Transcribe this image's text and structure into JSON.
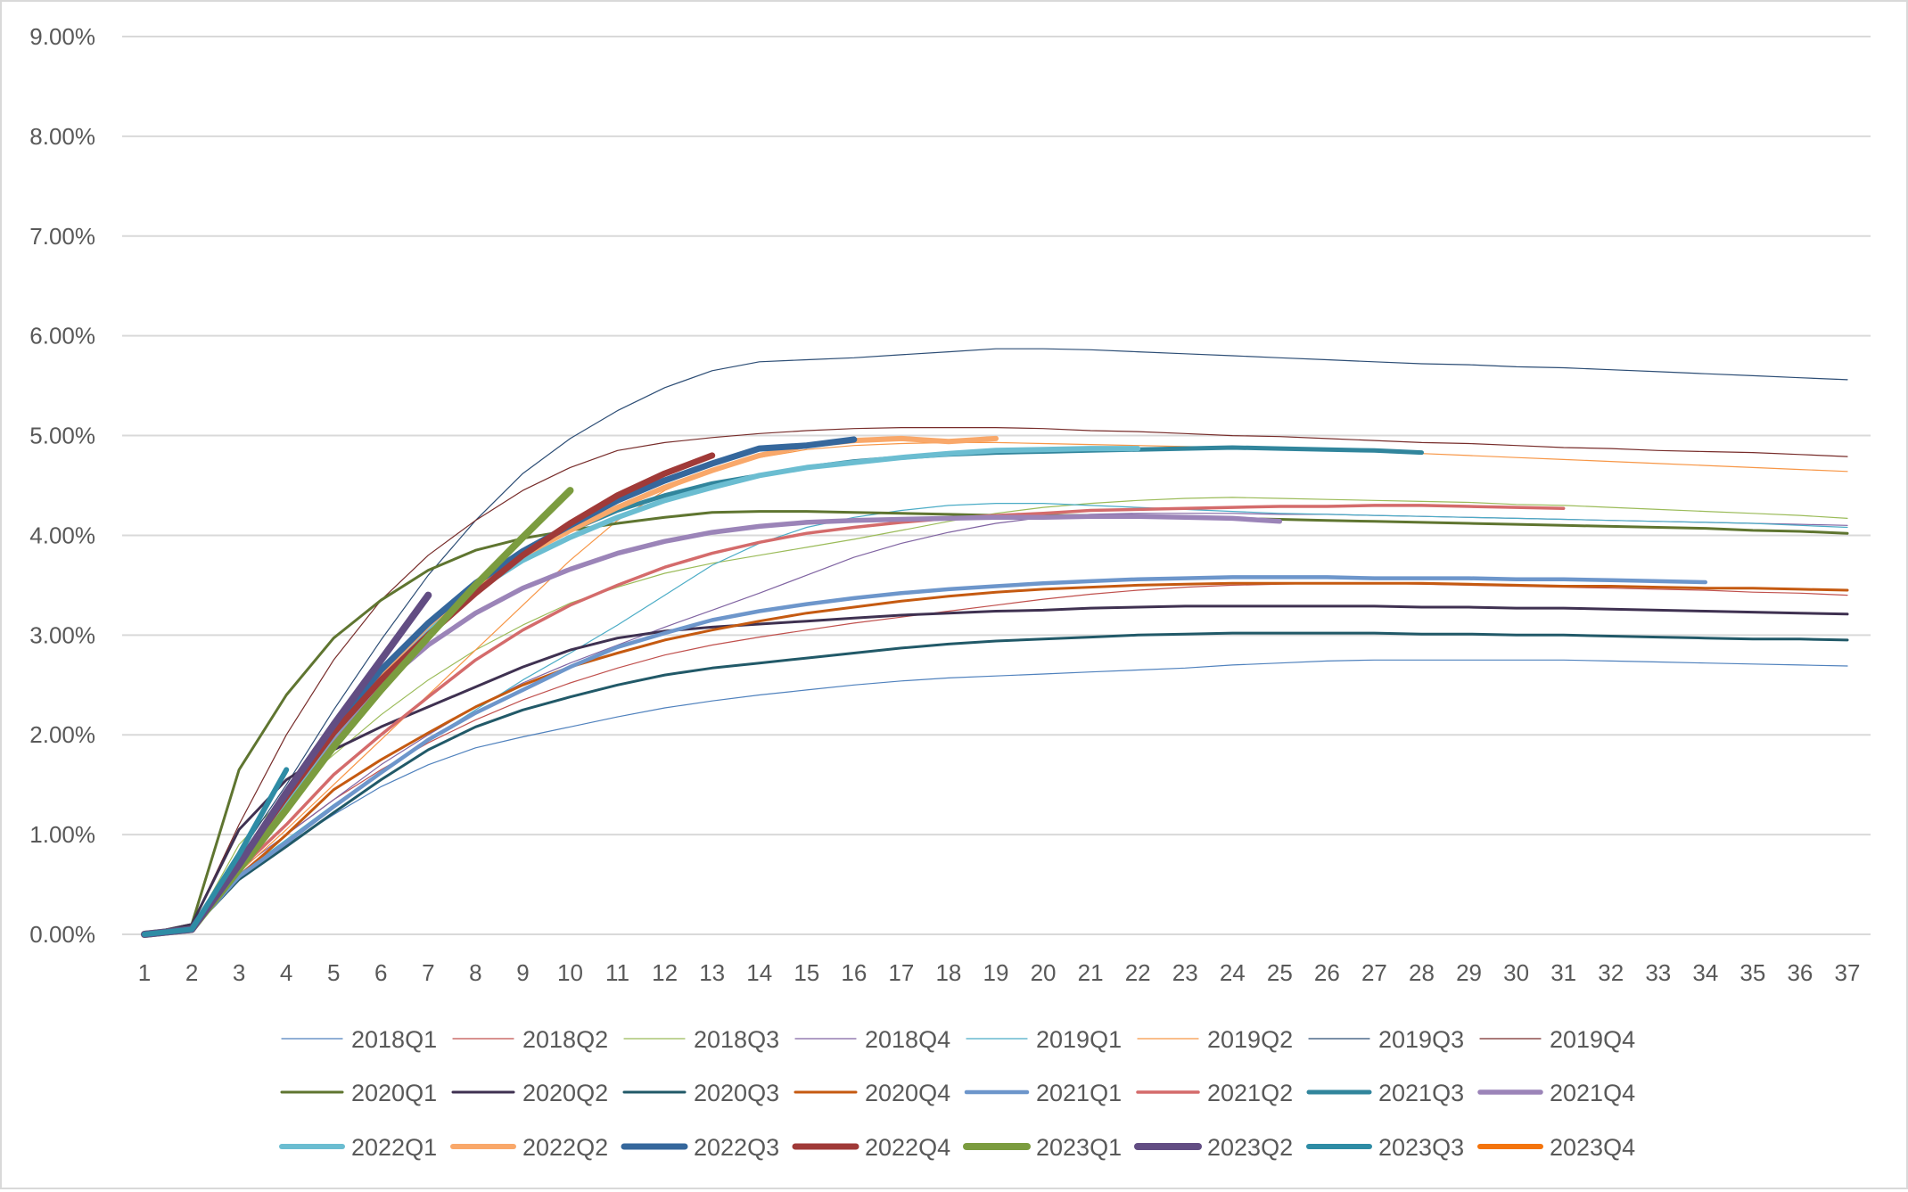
{
  "chart_data": {
    "type": "line",
    "title": "",
    "xlabel": "",
    "ylabel": "",
    "ylim": [
      0,
      9
    ],
    "yticks": [
      "0.00%",
      "1.00%",
      "2.00%",
      "3.00%",
      "4.00%",
      "5.00%",
      "6.00%",
      "7.00%",
      "8.00%",
      "9.00%"
    ],
    "x": [
      1,
      2,
      3,
      4,
      5,
      6,
      7,
      8,
      9,
      10,
      11,
      12,
      13,
      14,
      15,
      16,
      17,
      18,
      19,
      20,
      21,
      22,
      23,
      24,
      25,
      26,
      27,
      28,
      29,
      30,
      31,
      32,
      33,
      34,
      35,
      36,
      37
    ],
    "grid": "horizontal",
    "legend_position": "bottom",
    "series": [
      {
        "name": "2018Q1",
        "color": "#4f81bd",
        "width": 1.2,
        "values": [
          0,
          0.08,
          0.55,
          0.9,
          1.2,
          1.48,
          1.7,
          1.87,
          1.98,
          2.08,
          2.18,
          2.27,
          2.34,
          2.4,
          2.45,
          2.5,
          2.54,
          2.57,
          2.59,
          2.61,
          2.63,
          2.65,
          2.67,
          2.7,
          2.72,
          2.74,
          2.75,
          2.75,
          2.75,
          2.75,
          2.75,
          2.74,
          2.73,
          2.72,
          2.71,
          2.7,
          2.69
        ]
      },
      {
        "name": "2018Q2",
        "color": "#c0504d",
        "width": 1.2,
        "values": [
          0,
          0.08,
          0.6,
          1.0,
          1.35,
          1.65,
          1.92,
          2.15,
          2.35,
          2.52,
          2.67,
          2.8,
          2.9,
          2.98,
          3.05,
          3.12,
          3.18,
          3.24,
          3.3,
          3.36,
          3.41,
          3.45,
          3.48,
          3.5,
          3.51,
          3.52,
          3.52,
          3.51,
          3.5,
          3.49,
          3.48,
          3.47,
          3.46,
          3.45,
          3.43,
          3.42,
          3.4
        ]
      },
      {
        "name": "2018Q3",
        "color": "#9bbb59",
        "width": 1.2,
        "values": [
          0,
          0.05,
          0.9,
          1.4,
          1.8,
          2.2,
          2.55,
          2.85,
          3.1,
          3.32,
          3.48,
          3.62,
          3.72,
          3.8,
          3.88,
          3.96,
          4.05,
          4.14,
          4.22,
          4.28,
          4.32,
          4.35,
          4.37,
          4.38,
          4.37,
          4.36,
          4.35,
          4.34,
          4.33,
          4.31,
          4.3,
          4.28,
          4.26,
          4.24,
          4.22,
          4.2,
          4.17
        ]
      },
      {
        "name": "2018Q4",
        "color": "#8064a2",
        "width": 1.2,
        "values": [
          0,
          0.06,
          0.65,
          1.0,
          1.35,
          1.7,
          2.0,
          2.28,
          2.52,
          2.72,
          2.9,
          3.08,
          3.25,
          3.42,
          3.6,
          3.78,
          3.92,
          4.03,
          4.12,
          4.18,
          4.21,
          4.22,
          4.22,
          4.22,
          4.21,
          4.21,
          4.2,
          4.19,
          4.18,
          4.17,
          4.16,
          4.15,
          4.14,
          4.13,
          4.12,
          4.11,
          4.1
        ]
      },
      {
        "name": "2019Q1",
        "color": "#4bacc6",
        "width": 1.2,
        "values": [
          0,
          0.06,
          0.6,
          0.95,
          1.3,
          1.62,
          1.95,
          2.25,
          2.55,
          2.82,
          3.1,
          3.4,
          3.7,
          3.92,
          4.08,
          4.18,
          4.25,
          4.3,
          4.32,
          4.32,
          4.3,
          4.28,
          4.26,
          4.24,
          4.22,
          4.21,
          4.2,
          4.19,
          4.18,
          4.17,
          4.16,
          4.15,
          4.14,
          4.13,
          4.12,
          4.1,
          4.08
        ]
      },
      {
        "name": "2019Q2",
        "color": "#f79646",
        "width": 1.2,
        "values": [
          0,
          0.06,
          0.62,
          1.05,
          1.5,
          1.95,
          2.4,
          2.85,
          3.3,
          3.75,
          4.15,
          4.45,
          4.65,
          4.78,
          4.86,
          4.9,
          4.92,
          4.93,
          4.93,
          4.92,
          4.91,
          4.9,
          4.89,
          4.88,
          4.87,
          4.86,
          4.84,
          4.82,
          4.8,
          4.78,
          4.76,
          4.74,
          4.72,
          4.7,
          4.68,
          4.66,
          4.64
        ]
      },
      {
        "name": "2019Q3",
        "color": "#2c4d75",
        "width": 1.2,
        "values": [
          0,
          0.08,
          0.8,
          1.5,
          2.25,
          2.95,
          3.6,
          4.15,
          4.62,
          4.97,
          5.25,
          5.48,
          5.65,
          5.74,
          5.76,
          5.78,
          5.81,
          5.84,
          5.87,
          5.87,
          5.86,
          5.84,
          5.82,
          5.8,
          5.78,
          5.76,
          5.74,
          5.72,
          5.71,
          5.69,
          5.68,
          5.66,
          5.64,
          5.62,
          5.6,
          5.58,
          5.56
        ]
      },
      {
        "name": "2019Q4",
        "color": "#772c2a",
        "width": 1.2,
        "values": [
          0,
          0.1,
          1.1,
          2.0,
          2.75,
          3.35,
          3.8,
          4.15,
          4.45,
          4.68,
          4.85,
          4.93,
          4.98,
          5.02,
          5.05,
          5.07,
          5.08,
          5.08,
          5.08,
          5.07,
          5.05,
          5.04,
          5.02,
          5.0,
          4.99,
          4.97,
          4.95,
          4.93,
          4.92,
          4.9,
          4.88,
          4.87,
          4.85,
          4.84,
          4.83,
          4.81,
          4.79
        ]
      },
      {
        "name": "2020Q1",
        "color": "#5f7530",
        "width": 3,
        "values": [
          0,
          0.1,
          1.65,
          2.4,
          2.97,
          3.35,
          3.65,
          3.85,
          3.97,
          4.05,
          4.12,
          4.18,
          4.23,
          4.24,
          4.24,
          4.23,
          4.22,
          4.21,
          4.2,
          4.2,
          4.2,
          4.19,
          4.18,
          4.17,
          4.16,
          4.15,
          4.14,
          4.13,
          4.12,
          4.11,
          4.1,
          4.09,
          4.08,
          4.07,
          4.05,
          4.04,
          4.02
        ]
      },
      {
        "name": "2020Q2",
        "color": "#3f3151",
        "width": 3,
        "values": [
          0,
          0.1,
          1.05,
          1.55,
          1.85,
          2.08,
          2.28,
          2.48,
          2.68,
          2.85,
          2.97,
          3.04,
          3.08,
          3.11,
          3.14,
          3.17,
          3.2,
          3.22,
          3.24,
          3.25,
          3.27,
          3.28,
          3.29,
          3.29,
          3.29,
          3.29,
          3.29,
          3.28,
          3.28,
          3.27,
          3.27,
          3.26,
          3.25,
          3.24,
          3.23,
          3.22,
          3.21
        ]
      },
      {
        "name": "2020Q3",
        "color": "#215968",
        "width": 3,
        "values": [
          0,
          0.05,
          0.55,
          0.88,
          1.22,
          1.55,
          1.85,
          2.08,
          2.25,
          2.38,
          2.5,
          2.6,
          2.67,
          2.72,
          2.77,
          2.82,
          2.87,
          2.91,
          2.94,
          2.96,
          2.98,
          3.0,
          3.01,
          3.02,
          3.02,
          3.02,
          3.02,
          3.01,
          3.01,
          3.0,
          3.0,
          2.99,
          2.98,
          2.97,
          2.96,
          2.96,
          2.95
        ]
      },
      {
        "name": "2020Q4",
        "color": "#c55a11",
        "width": 3,
        "values": [
          0,
          0.05,
          0.58,
          1.0,
          1.45,
          1.75,
          2.02,
          2.28,
          2.5,
          2.68,
          2.82,
          2.95,
          3.05,
          3.14,
          3.22,
          3.28,
          3.34,
          3.39,
          3.43,
          3.46,
          3.48,
          3.5,
          3.51,
          3.52,
          3.52,
          3.52,
          3.52,
          3.52,
          3.51,
          3.5,
          3.49,
          3.49,
          3.48,
          3.47,
          3.47,
          3.46,
          3.45
        ]
      },
      {
        "name": "2021Q1",
        "color": "#6d96cb",
        "width": 4.5,
        "values": [
          0,
          0.05,
          0.58,
          0.92,
          1.28,
          1.62,
          1.95,
          2.22,
          2.45,
          2.68,
          2.88,
          3.02,
          3.15,
          3.24,
          3.31,
          3.37,
          3.42,
          3.46,
          3.49,
          3.52,
          3.54,
          3.56,
          3.57,
          3.58,
          3.58,
          3.58,
          3.57,
          3.57,
          3.57,
          3.56,
          3.56,
          3.55,
          3.54,
          3.53
        ]
      },
      {
        "name": "2021Q2",
        "color": "#d46b6b",
        "width": 3.5,
        "values": [
          0,
          0.05,
          0.65,
          1.1,
          1.6,
          2.0,
          2.38,
          2.75,
          3.05,
          3.3,
          3.5,
          3.68,
          3.82,
          3.93,
          4.02,
          4.08,
          4.13,
          4.17,
          4.2,
          4.22,
          4.25,
          4.26,
          4.27,
          4.28,
          4.29,
          4.29,
          4.3,
          4.3,
          4.29,
          4.28,
          4.27
        ]
      },
      {
        "name": "2021Q3",
        "color": "#31859c",
        "width": 5,
        "values": [
          0,
          0.05,
          0.7,
          1.4,
          2.05,
          2.6,
          3.05,
          3.45,
          3.8,
          4.05,
          4.25,
          4.4,
          4.52,
          4.6,
          4.68,
          4.74,
          4.78,
          4.81,
          4.83,
          4.84,
          4.85,
          4.86,
          4.87,
          4.88,
          4.87,
          4.86,
          4.85,
          4.83
        ]
      },
      {
        "name": "2021Q4",
        "color": "#9b84b8",
        "width": 5.5,
        "values": [
          0,
          0.05,
          0.7,
          1.3,
          1.95,
          2.5,
          2.9,
          3.22,
          3.47,
          3.66,
          3.82,
          3.94,
          4.03,
          4.09,
          4.13,
          4.15,
          4.16,
          4.17,
          4.18,
          4.18,
          4.19,
          4.19,
          4.18,
          4.17,
          4.14
        ]
      },
      {
        "name": "2022Q1",
        "color": "#6bbdd1",
        "width": 6,
        "values": [
          0,
          0.05,
          0.7,
          1.35,
          2.0,
          2.55,
          3.05,
          3.45,
          3.75,
          3.98,
          4.18,
          4.35,
          4.48,
          4.6,
          4.68,
          4.73,
          4.78,
          4.82,
          4.85,
          4.86,
          4.87,
          4.87
        ]
      },
      {
        "name": "2022Q2",
        "color": "#f9a86a",
        "width": 6,
        "values": [
          0,
          0.05,
          0.72,
          1.38,
          2.05,
          2.62,
          3.1,
          3.5,
          3.8,
          4.05,
          4.28,
          4.48,
          4.65,
          4.8,
          4.9,
          4.95,
          4.97,
          4.94,
          4.97
        ]
      },
      {
        "name": "2022Q3",
        "color": "#35679c",
        "width": 7,
        "values": [
          0,
          0.05,
          0.72,
          1.4,
          2.08,
          2.65,
          3.12,
          3.52,
          3.84,
          4.1,
          4.35,
          4.55,
          4.72,
          4.87,
          4.9,
          4.96
        ]
      },
      {
        "name": "2022Q4",
        "color": "#a03a38",
        "width": 7,
        "values": [
          0,
          0.05,
          0.72,
          1.38,
          2.02,
          2.55,
          3.0,
          3.42,
          3.8,
          4.12,
          4.4,
          4.62,
          4.8
        ]
      },
      {
        "name": "2023Q1",
        "color": "#7b9c3f",
        "width": 8,
        "values": [
          0,
          0.05,
          0.65,
          1.25,
          1.88,
          2.45,
          2.98,
          3.5,
          3.98,
          4.45
        ]
      },
      {
        "name": "2023Q2",
        "color": "#624d83",
        "width": 8,
        "values": [
          0,
          0.05,
          0.7,
          1.42,
          2.1,
          2.75,
          3.4
        ]
      },
      {
        "name": "2023Q3",
        "color": "#2e8ca5",
        "width": 6,
        "values": [
          0,
          0.05,
          0.8,
          1.65
        ]
      },
      {
        "name": "2023Q4",
        "color": "#f4740c",
        "width": 6,
        "values": []
      }
    ]
  }
}
